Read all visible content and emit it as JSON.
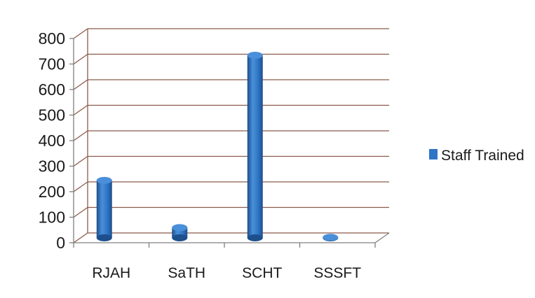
{
  "chart_data": {
    "type": "bar",
    "categories": [
      "RJAH",
      "SaTH",
      "SCHT",
      "SSSFT"
    ],
    "series": [
      {
        "name": "Staff Trained",
        "values": [
          225,
          40,
          715,
          2
        ]
      }
    ],
    "ylim": [
      0,
      800
    ],
    "yticks": [
      0,
      100,
      200,
      300,
      400,
      500,
      600,
      700,
      800
    ],
    "grid": true,
    "legend_position": "right",
    "bar_style": "3d-cylinder",
    "colors": {
      "bar": "#2e75c6",
      "bar_dark": "#1c4f8c",
      "bar_top": "#4a8fd9",
      "grid": "#8b5a4a",
      "axis": "#808080"
    }
  }
}
